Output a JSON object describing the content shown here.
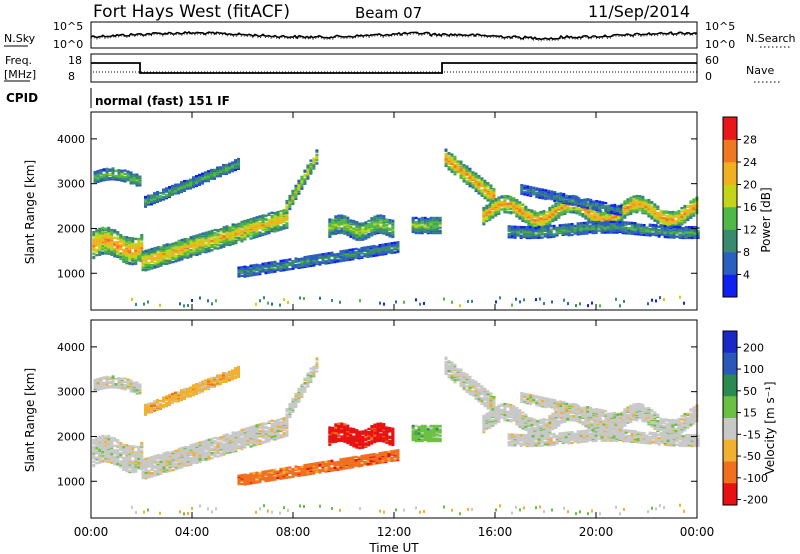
{
  "header": {
    "station": "Fort Hays West (fitACF)",
    "beam": "Beam 07",
    "date": "11/Sep/2014"
  },
  "noise_panel": {
    "left_label": "N.Sky",
    "left_ticks": [
      "10^5",
      "10^0"
    ],
    "right_label": "N.Search",
    "right_ticks": [
      "10^5",
      "10^0"
    ]
  },
  "freq_panel": {
    "left_label_1": "Freq.",
    "left_label_2": "[MHz]",
    "left_ticks": [
      "18",
      "8"
    ],
    "right_label": "Nave",
    "right_ticks": [
      "60",
      "0"
    ]
  },
  "cpid": {
    "label": "CPID",
    "value": "normal (fast) 151 IF"
  },
  "chart_data": [
    {
      "type": "heatmap",
      "name": "power",
      "ylabel": "Slant Range [km]",
      "ylim": [
        180,
        4600
      ],
      "yticks": [
        1000,
        2000,
        3000,
        4000
      ],
      "colorbar_label": "Power [dB]",
      "colorbar_ticks": [
        4,
        8,
        12,
        16,
        20,
        24,
        28
      ],
      "colorbar_range": [
        0,
        32
      ],
      "colors": [
        "#1020f0",
        "#2a5ec0",
        "#3a8a70",
        "#50b848",
        "#c4d418",
        "#f0b020",
        "#f07820",
        "#e81818"
      ]
    },
    {
      "type": "heatmap",
      "name": "velocity",
      "ylabel": "Slant Range [km]",
      "ylim": [
        180,
        4600
      ],
      "yticks": [
        1000,
        2000,
        3000,
        4000
      ],
      "colorbar_label": "Velocity [m s⁻¹]",
      "colorbar_ticks": [
        "200",
        "100",
        "50",
        "15",
        "-15",
        "-50",
        "-100",
        "-200"
      ],
      "colors": [
        "#1a28c8",
        "#2a58b8",
        "#2a8a50",
        "#6ac040",
        "#c8c8c8",
        "#f0b030",
        "#f07020",
        "#e81010"
      ]
    }
  ],
  "x_axis": {
    "label": "Time UT",
    "ticks": [
      "00:00",
      "04:00",
      "08:00",
      "12:00",
      "16:00",
      "20:00",
      "00:00"
    ],
    "xlim_hours": [
      0,
      24
    ]
  }
}
